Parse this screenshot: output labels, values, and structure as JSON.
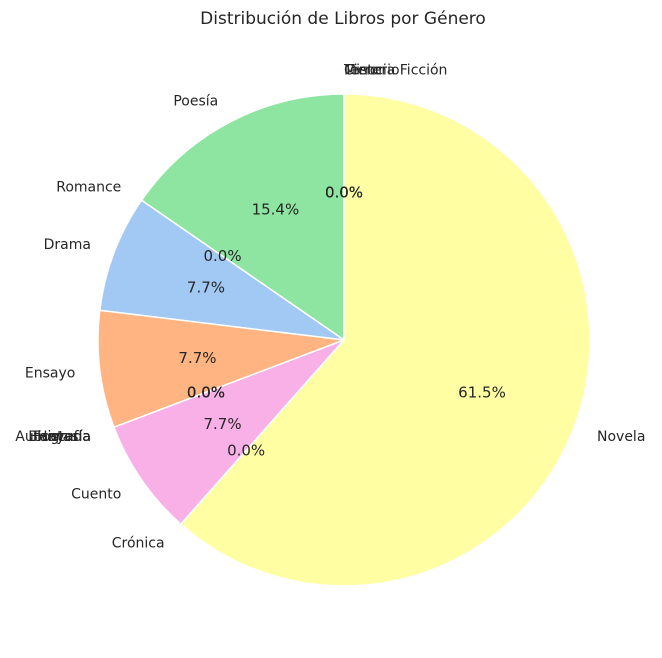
{
  "chart_data": {
    "type": "pie",
    "title": "Distribución de Libros por Género",
    "start_angle_deg": 90,
    "direction": "counterclockwise",
    "slices": [
      {
        "label": "Ciencia Ficción",
        "value": 0,
        "pct_label": "0.0%",
        "color": "#5c88c9"
      },
      {
        "label": "Misterio",
        "value": 0,
        "pct_label": "0.0%",
        "color": "#e07b3f"
      },
      {
        "label": "Terror",
        "value": 0,
        "pct_label": "0.0%",
        "color": "#5fa868"
      },
      {
        "label": "Poesía",
        "value": 2,
        "pct_label": "15.4%",
        "color": "#8de5a1"
      },
      {
        "label": "Romance",
        "value": 0,
        "pct_label": "0.0%",
        "color": "#d0bbff"
      },
      {
        "label": "Drama",
        "value": 1,
        "pct_label": "7.7%",
        "color": "#a1c9f4"
      },
      {
        "label": "Ensayo",
        "value": 1,
        "pct_label": "7.7%",
        "color": "#ffb482"
      },
      {
        "label": "Biografía",
        "value": 0,
        "pct_label": "0.0%",
        "color": "#cfcfcf"
      },
      {
        "label": "Fantasía",
        "value": 0,
        "pct_label": "0.0%",
        "color": "#debb9b"
      },
      {
        "label": "Historia",
        "value": 0,
        "pct_label": "0.0%",
        "color": "#d0bbff"
      },
      {
        "label": "Autoayuda",
        "value": 0,
        "pct_label": "0.0%",
        "color": "#b9f2f0"
      },
      {
        "label": "Cuento",
        "value": 1,
        "pct_label": "7.7%",
        "color": "#f8b0e7"
      },
      {
        "label": "Crónica",
        "value": 0,
        "pct_label": "0.0%",
        "color": "#cfcfcf"
      },
      {
        "label": "Novela",
        "value": 8,
        "pct_label": "61.5%",
        "color": "#fffea3"
      }
    ]
  }
}
